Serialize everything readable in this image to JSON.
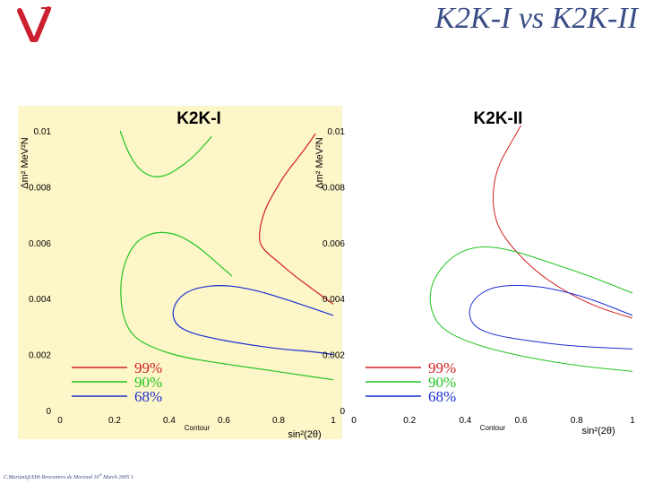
{
  "header": {
    "title": "K2K-I vs K2K-II",
    "logo": "nu-logo-icon"
  },
  "footer": {
    "prefix": "C.Mariani@XIth Rencontres de Moriond 16",
    "sup": "th",
    "suffix": " March 2005 1"
  },
  "colors": {
    "panel_bg": "#fdf6c8",
    "c99": "#d32020",
    "c90": "#22c422",
    "c68": "#1c2ed0",
    "title": "#3b4d86"
  },
  "chart_data": [
    {
      "type": "line",
      "title": "K2K-I",
      "xlabel": "sin²(2θ)",
      "ylabel": "Δm² MeV²N",
      "xlim": [
        0,
        1
      ],
      "ylim": [
        0,
        0.01
      ],
      "xticks": [
        "0",
        "0.2",
        "0.4",
        "0.6",
        "0.8",
        "1"
      ],
      "yticks": [
        "0",
        "0.002",
        "0.004",
        "0.006",
        "0.008",
        "0.01"
      ],
      "bottom_label": "Contour",
      "legend": [
        {
          "name": "99%",
          "color": "#d32020"
        },
        {
          "name": "90%",
          "color": "#22c422"
        },
        {
          "name": "68%",
          "color": "#1c2ed0"
        }
      ],
      "series": [
        {
          "name": "99%",
          "color": "#d32020",
          "x": [
            0.935,
            0.9,
            0.86,
            0.82,
            0.79,
            0.76,
            0.74,
            0.73,
            0.73,
            0.75,
            0.8,
            0.86,
            0.93,
            1.0
          ],
          "y": [
            0.0099,
            0.0094,
            0.0089,
            0.0084,
            0.0079,
            0.0074,
            0.0069,
            0.0064,
            0.006,
            0.0057,
            0.0053,
            0.0048,
            0.0043,
            0.0038
          ]
        },
        {
          "name": "90% (upper)",
          "color": "#22c422",
          "x": [
            0.22,
            0.25,
            0.29,
            0.34,
            0.39,
            0.44,
            0.48,
            0.52,
            0.555
          ],
          "y": [
            0.01,
            0.0092,
            0.0086,
            0.00833,
            0.0084,
            0.0087,
            0.009,
            0.0094,
            0.0098
          ]
        },
        {
          "name": "90% (main)",
          "color": "#22c422",
          "x": [
            0.63,
            0.56,
            0.5,
            0.43,
            0.36,
            0.3,
            0.26,
            0.23,
            0.22,
            0.23,
            0.27,
            0.35,
            0.45,
            0.58,
            0.72,
            0.86,
            1.0
          ],
          "y": [
            0.0048,
            0.0054,
            0.0059,
            0.0063,
            0.0064,
            0.0062,
            0.0058,
            0.0051,
            0.0043,
            0.0033,
            0.0026,
            0.0022,
            0.0019,
            0.0017,
            0.0015,
            0.0013,
            0.0011
          ]
        },
        {
          "name": "68%",
          "color": "#1c2ed0",
          "x": [
            1.0,
            0.85,
            0.72,
            0.6,
            0.5,
            0.44,
            0.41,
            0.42,
            0.47,
            0.55,
            0.66,
            0.8,
            0.93,
            1.0
          ],
          "y": [
            0.0034,
            0.0039,
            0.0043,
            0.0045,
            0.0044,
            0.0041,
            0.0036,
            0.0031,
            0.0028,
            0.0026,
            0.0024,
            0.0022,
            0.0021,
            0.002
          ]
        }
      ]
    },
    {
      "type": "line",
      "title": "K2K-II",
      "xlabel": "sin²(2θ)",
      "ylabel": "Δm² MeV²N",
      "xlim": [
        0,
        1
      ],
      "ylim": [
        0,
        0.01
      ],
      "xticks": [
        "0",
        "0.2",
        "0.4",
        "0.6",
        "0.8",
        "1"
      ],
      "yticks": [
        "0",
        "0.002",
        "0.004",
        "0.006",
        "0.008",
        "0.01"
      ],
      "bottom_label": "Contour",
      "legend": [
        {
          "name": "99%",
          "color": "#d32020"
        },
        {
          "name": "90%",
          "color": "#22c422"
        },
        {
          "name": "68%",
          "color": "#1c2ed0"
        }
      ],
      "series": [
        {
          "name": "99%",
          "color": "#d32020",
          "x": [
            0.6,
            0.56,
            0.52,
            0.5,
            0.5,
            0.52,
            0.57,
            0.65,
            0.75,
            0.87,
            1.0
          ],
          "y": [
            0.0102,
            0.0095,
            0.0088,
            0.008,
            0.0072,
            0.0065,
            0.0058,
            0.005,
            0.0043,
            0.0037,
            0.0033
          ]
        },
        {
          "name": "90%",
          "color": "#22c422",
          "x": [
            1.0,
            0.85,
            0.7,
            0.58,
            0.47,
            0.38,
            0.31,
            0.27,
            0.28,
            0.33,
            0.45,
            0.62,
            0.8,
            1.0
          ],
          "y": [
            0.0042,
            0.0048,
            0.0053,
            0.0057,
            0.0059,
            0.0057,
            0.0051,
            0.0043,
            0.0034,
            0.0028,
            0.0023,
            0.0019,
            0.0016,
            0.0014
          ]
        },
        {
          "name": "68%",
          "color": "#1c2ed0",
          "x": [
            1.0,
            0.85,
            0.7,
            0.58,
            0.49,
            0.43,
            0.41,
            0.43,
            0.5,
            0.62,
            0.78,
            1.0
          ],
          "y": [
            0.0034,
            0.004,
            0.0044,
            0.0045,
            0.0044,
            0.004,
            0.0035,
            0.003,
            0.0027,
            0.0025,
            0.0023,
            0.0022
          ]
        }
      ]
    }
  ]
}
